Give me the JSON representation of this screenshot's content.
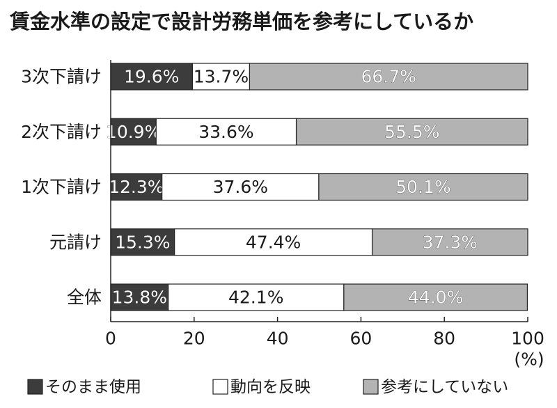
{
  "title": "賃金水準の設定で設計労務単価を参考にしているか",
  "chart_data": {
    "type": "bar",
    "orientation": "horizontal",
    "stacked": true,
    "title": "賃金水準の設定で設計労務単価を参考にしているか",
    "categories": [
      "3次下請け",
      "2次下請け",
      "1次下請け",
      "元請け",
      "全体"
    ],
    "series": [
      {
        "name": "そのまま使用",
        "color": "#3c3c3c",
        "label_color": "#ffffff",
        "values": [
          19.6,
          10.9,
          12.3,
          15.3,
          13.8
        ],
        "labels": [
          "19.6%",
          "10.9%",
          "12.3%",
          "15.3%",
          "13.8%"
        ]
      },
      {
        "name": "動向を反映",
        "color": "#ffffff",
        "label_color": "#1a1a1a",
        "values": [
          13.7,
          33.6,
          37.6,
          47.4,
          42.1
        ],
        "labels": [
          "13.7%",
          "33.6%",
          "37.6%",
          "47.4%",
          "42.1%"
        ]
      },
      {
        "name": "参考にしていない",
        "color": "#b3b3b3",
        "label_color": "#ffffff",
        "values": [
          66.7,
          55.5,
          50.1,
          37.3,
          44.0
        ],
        "labels": [
          "66.7%",
          "55.5%",
          "50.1%",
          "37.3%",
          "44.0%"
        ]
      }
    ],
    "x_ticks": [
      "0",
      "20",
      "40",
      "60",
      "80",
      "100"
    ],
    "x_unit": "(%)",
    "xlim": [
      0,
      100
    ],
    "grid": false,
    "legend_position": "bottom"
  }
}
